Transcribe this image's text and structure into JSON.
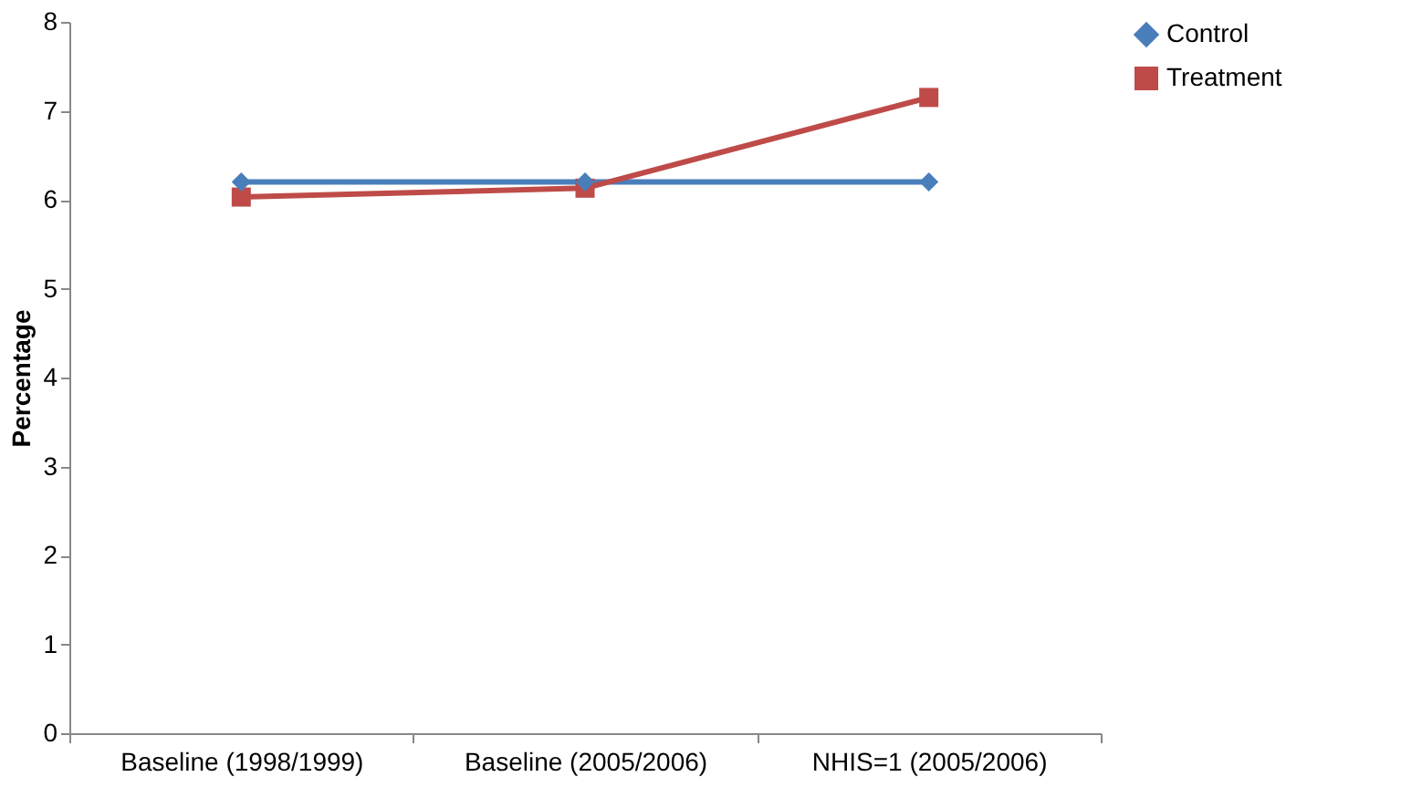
{
  "chart_data": {
    "type": "line",
    "ylabel": "Percentage",
    "categories": [
      "Baseline (1998/1999)",
      "Baseline (2005/2006)",
      "NHIS=1 (2005/2006)"
    ],
    "series": [
      {
        "name": "Control",
        "color": "#4a7ebb",
        "values": [
          6.2,
          6.2,
          6.2
        ],
        "marker": "diamond"
      },
      {
        "name": "Treatment",
        "color": "#be4b48",
        "values": [
          6.03,
          6.13,
          7.15
        ],
        "marker": "square"
      }
    ],
    "ylim": [
      0,
      8
    ],
    "yticks": [
      0,
      1,
      2,
      3,
      4,
      5,
      6,
      7,
      8
    ],
    "grid": false,
    "legend": "right",
    "line_style": "solid"
  }
}
